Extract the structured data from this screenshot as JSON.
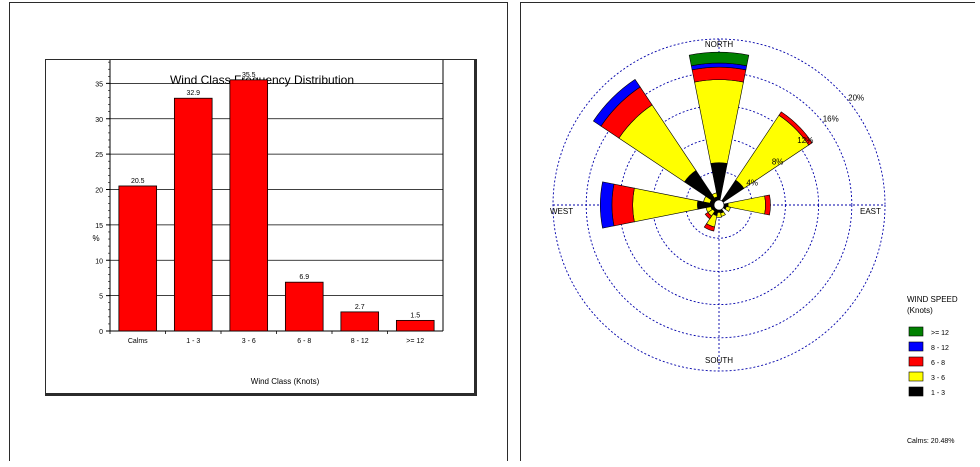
{
  "colors": {
    "bar": "#ff0000",
    "speed_ge12": "#008000",
    "speed_8_12": "#0000ff",
    "speed_6_8": "#ff0000",
    "speed_3_6": "#ffff00",
    "speed_1_3": "#000000",
    "grid": "#0000aa"
  },
  "chart_data": [
    {
      "type": "bar",
      "title": "Wind Class Frequency Distribution",
      "xlabel": "Wind Class (Knots)",
      "ylabel": "%",
      "categories": [
        "Calms",
        "1 - 3",
        "3 - 6",
        "6 - 8",
        "8 - 12",
        ">= 12"
      ],
      "values": [
        20.5,
        32.9,
        35.5,
        6.9,
        2.7,
        1.5
      ],
      "value_labels": [
        "20.5",
        "32.9",
        "35.5",
        "6.9",
        "2.7",
        "1.5"
      ],
      "ylim": [
        0,
        40
      ],
      "yticks": [
        0,
        5,
        10,
        15,
        20,
        25,
        30,
        35,
        40
      ],
      "grid": true
    },
    {
      "type": "wind-rose",
      "directions": {
        "north": "NORTH",
        "south": "SOUTH",
        "east": "EAST",
        "west": "WEST"
      },
      "ring_values": [
        4,
        8,
        12,
        16,
        20
      ],
      "ring_labels": [
        "4%",
        "8%",
        "12%",
        "16%",
        "20%"
      ],
      "legend": {
        "title": "WIND SPEED",
        "subtitle": "(Knots)",
        "entries": [
          {
            "label": ">= 12",
            "color": "#008000"
          },
          {
            "label": "8 - 12",
            "color": "#0000ff"
          },
          {
            "label": "6 - 8",
            "color": "#ff0000"
          },
          {
            "label": "3 - 6",
            "color": "#ffff00"
          },
          {
            "label": "1 - 3",
            "color": "#000000"
          }
        ]
      },
      "calms_label": "Calms: 20.48%",
      "series_order": [
        "1 - 3",
        "3 - 6",
        "6 - 8",
        "8 - 12",
        ">= 12"
      ],
      "petals": [
        {
          "direction_deg": 0,
          "segments": [
            4.5,
            10.0,
            1.5,
            0.5,
            1.3
          ]
        },
        {
          "direction_deg": 45,
          "segments": [
            3.0,
            9.4,
            0.5,
            0.0,
            0.0
          ]
        },
        {
          "direction_deg": 90,
          "segments": [
            0.5,
            4.5,
            0.6,
            0.0,
            0.0
          ]
        },
        {
          "direction_deg": 112.5,
          "segments": [
            0.3,
            0.5,
            0.0,
            0.0,
            0.0
          ]
        },
        {
          "direction_deg": 157.5,
          "segments": [
            0.4,
            0.4,
            0.0,
            0.0,
            0.0
          ]
        },
        {
          "direction_deg": 180,
          "segments": [
            0.3,
            0.6,
            0.0,
            0.0,
            0.0
          ]
        },
        {
          "direction_deg": 202.5,
          "segments": [
            0.7,
            1.4,
            0.5,
            0.0,
            0.0
          ]
        },
        {
          "direction_deg": 225,
          "segments": [
            0.3,
            0.7,
            0.4,
            0.0,
            0.0
          ]
        },
        {
          "direction_deg": 247.5,
          "segments": [
            0.4,
            0.6,
            0.0,
            0.0,
            0.0
          ]
        },
        {
          "direction_deg": 270,
          "segments": [
            2.0,
            7.8,
            2.5,
            1.4,
            0.0
          ]
        },
        {
          "direction_deg": 292.5,
          "segments": [
            0.5,
            0.8,
            0.0,
            0.0,
            0.0
          ]
        },
        {
          "direction_deg": 315,
          "segments": [
            4.4,
            9.5,
            2.6,
            1.1,
            0.0
          ]
        },
        {
          "direction_deg": 337.5,
          "segments": [
            0.4,
            0.5,
            0.0,
            0.0,
            0.0
          ]
        }
      ]
    }
  ]
}
